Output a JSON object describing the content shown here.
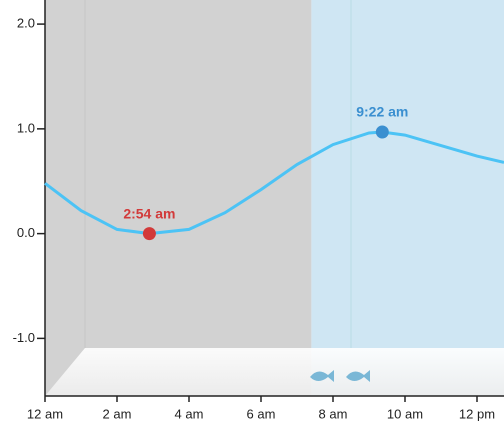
{
  "chart_data": {
    "type": "line",
    "x": [
      0,
      1,
      2,
      2.9,
      4,
      5,
      6,
      7,
      8,
      9,
      9.37,
      10,
      11,
      12,
      12.75
    ],
    "series": [
      {
        "color": "#4cc3f5",
        "values": [
          0.48,
          0.22,
          0.04,
          0.0,
          0.04,
          0.2,
          0.42,
          0.66,
          0.85,
          0.96,
          0.97,
          0.94,
          0.84,
          0.74,
          0.68
        ]
      }
    ],
    "xlim": [
      0,
      12.75
    ],
    "ylim": [
      -1.55,
      2.23
    ],
    "yticks": [
      {
        "value": 2,
        "label": "2.0"
      },
      {
        "value": 1,
        "label": "1.0"
      },
      {
        "value": 0,
        "label": "0.0"
      },
      {
        "value": -1,
        "label": "-1.0"
      }
    ],
    "xticks": [
      {
        "value": 0,
        "label": "12 am"
      },
      {
        "value": 2,
        "label": "2 am"
      },
      {
        "value": 4,
        "label": "4 am"
      },
      {
        "value": 6,
        "label": "6 am"
      },
      {
        "value": 8,
        "label": "8 am"
      },
      {
        "value": 10,
        "label": "10 am"
      },
      {
        "value": 12,
        "label": "12 pm"
      }
    ],
    "periods": [
      {
        "from": 0,
        "to": 7.4,
        "color": "#d2d2d2"
      },
      {
        "from": 7.4,
        "to": 12.75,
        "color": "#cfe6f3"
      }
    ],
    "annotations": [
      {
        "x": 2.9,
        "y": 0.0,
        "label": "2:54 am",
        "color": "#d23a3a"
      },
      {
        "x": 9.37,
        "y": 0.97,
        "label": "9:22 am",
        "color": "#3a8fd0"
      }
    ]
  }
}
